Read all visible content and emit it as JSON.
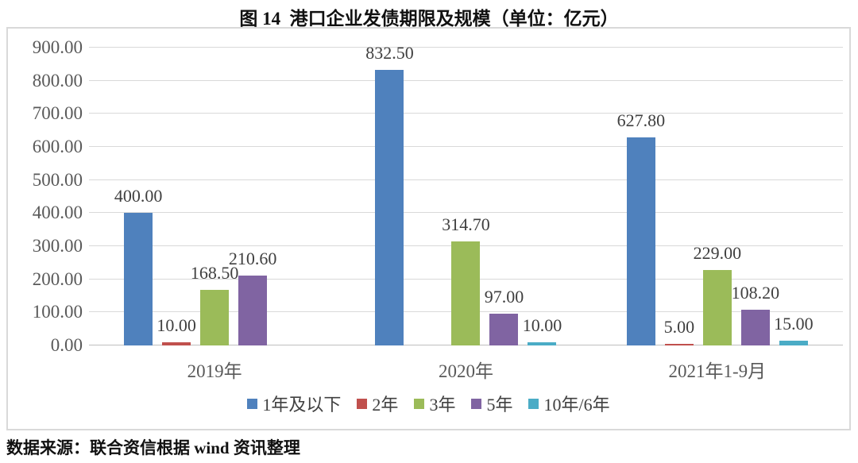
{
  "title": "图 14  港口企业发债期限及规模（单位：亿元）",
  "source_note": "数据来源：联合资信根据 wind 资讯整理",
  "colors": {
    "gridline": "#d9d9d9",
    "axis_line": "#bfbfbf",
    "axis_label": "#595959",
    "data_label": "#3f3f3f",
    "chart_border": "#d9d9d9"
  },
  "chart_data": {
    "type": "bar",
    "title": "图 14  港口企业发债期限及规模（单位：亿元）",
    "unit": "亿元",
    "categories": [
      "2019年",
      "2020年",
      "2021年1-9月"
    ],
    "series": [
      {
        "name": "1年及以下",
        "color": "#4F81BD",
        "values": [
          400.0,
          832.5,
          627.8
        ]
      },
      {
        "name": "2年",
        "color": "#C0504D",
        "values": [
          10.0,
          null,
          5.0
        ]
      },
      {
        "name": "3年",
        "color": "#9BBB59",
        "values": [
          168.5,
          314.7,
          229.0
        ]
      },
      {
        "name": "5年",
        "color": "#8064A2",
        "values": [
          210.6,
          97.0,
          108.2
        ]
      },
      {
        "name": "10年/6年",
        "color": "#4BACC6",
        "values": [
          null,
          10.0,
          15.0
        ]
      }
    ],
    "ylim": [
      0,
      900
    ],
    "ytick_step": 100,
    "ytick_format": "2-decimals",
    "grid": true,
    "legend_position": "bottom",
    "data_labels": true
  }
}
